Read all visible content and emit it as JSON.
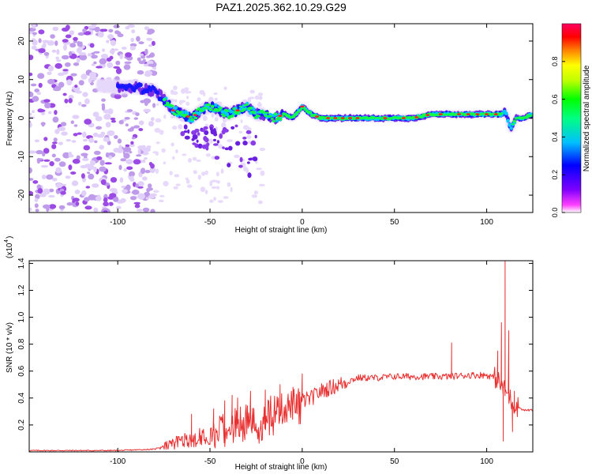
{
  "figure_title": "PAZ1.2025.362.10.29.G29",
  "chart_data": [
    {
      "type": "heatmap",
      "xlabel": "Height of straight line (km)",
      "ylabel": "Frequency (Hz)",
      "xlim": [
        -148,
        125
      ],
      "ylim": [
        -24.5,
        24.5
      ],
      "xticks": [
        -100,
        -50,
        0,
        50,
        100
      ],
      "yticks": [
        -20,
        -10,
        0,
        10,
        20
      ],
      "ridge": {
        "x": [
          -148,
          -120,
          -100,
          -90,
          -80,
          -75,
          -70,
          -65,
          -60,
          -55,
          -50,
          -45,
          -40,
          -35,
          -30,
          -25,
          -20,
          -15,
          -10,
          -5,
          0,
          5,
          10,
          20,
          30,
          40,
          50,
          60,
          70,
          80,
          90,
          100,
          105,
          108,
          110,
          113,
          116,
          120,
          125
        ],
        "freq": [
          10,
          9,
          8,
          8,
          7,
          5,
          2,
          1,
          0,
          2,
          3,
          2,
          1,
          2,
          3,
          1,
          1,
          0,
          1,
          0,
          3,
          1,
          0,
          0,
          0,
          0,
          0,
          0,
          1,
          1,
          1,
          1,
          1,
          1,
          2,
          -3,
          0,
          0,
          1
        ]
      },
      "colorbar": {
        "label": "Normalized spectral amplitude",
        "range": [
          0,
          1
        ],
        "ticks": [
          "0.0",
          "0.2",
          "0.4",
          "0.6",
          "0.8"
        ],
        "tick_values": [
          0,
          0.2,
          0.4,
          0.6,
          0.8
        ],
        "colormap": [
          "#ffffff",
          "#ff00ff",
          "#8000ff",
          "#0000ff",
          "#00c0ff",
          "#00ff80",
          "#00ff00",
          "#c0ff00",
          "#ffff00",
          "#ff8000",
          "#ff0000",
          "#ff0060"
        ]
      },
      "colors": {
        "noise": "#8a2be2",
        "ridge_core": "#ff2020"
      }
    },
    {
      "type": "line",
      "xlabel": "Height of straight line (km)",
      "ylabel": "SNR (10 * v/v)",
      "scale_label": "(x10",
      "scale_exp": "4",
      "xlim": [
        -148,
        125
      ],
      "ylim": [
        0,
        1.42
      ],
      "xticks": [
        -100,
        -50,
        0,
        50,
        100
      ],
      "yticks": [
        0.2,
        0.4,
        0.6,
        0.8,
        1.0,
        1.2,
        1.4
      ],
      "ytick_labels": [
        "0.2",
        "0.4",
        "0.6",
        "0.8",
        "1.0",
        "1.2",
        "1.4"
      ],
      "series": [
        {
          "name": "SNR",
          "color": "#e83030",
          "envelope": {
            "x": [
              -148,
              -100,
              -80,
              -75,
              -70,
              -60,
              -50,
              -40,
              -30,
              -20,
              -10,
              -5,
              0,
              5,
              10,
              20,
              30,
              40,
              50,
              60,
              70,
              80,
              90,
              100,
              105,
              110,
              115,
              120,
              125
            ],
            "y": [
              0.01,
              0.01,
              0.02,
              0.05,
              0.08,
              0.1,
              0.15,
              0.2,
              0.25,
              0.3,
              0.32,
              0.35,
              0.38,
              0.4,
              0.45,
              0.5,
              0.55,
              0.55,
              0.56,
              0.56,
              0.56,
              0.56,
              0.57,
              0.57,
              0.55,
              0.45,
              0.35,
              0.31,
              0.31
            ]
          },
          "spikes": [
            {
              "x": -60,
              "y": 0.28
            },
            {
              "x": -48,
              "y": 0.32
            },
            {
              "x": -42,
              "y": 0.38
            },
            {
              "x": -38,
              "y": 0.42
            },
            {
              "x": -35,
              "y": 0.4
            },
            {
              "x": -28,
              "y": 0.45
            },
            {
              "x": -20,
              "y": 0.46
            },
            {
              "x": -12,
              "y": 0.5
            },
            {
              "x": -5,
              "y": 0.48
            },
            {
              "x": 0,
              "y": 0.58
            },
            {
              "x": 81,
              "y": 0.81
            },
            {
              "x": 106,
              "y": 0.75
            },
            {
              "x": 108,
              "y": 0.96
            },
            {
              "x": 110,
              "y": 1.42
            },
            {
              "x": 112,
              "y": 0.9
            },
            {
              "x": 115,
              "y": 0.45
            }
          ],
          "dips": [
            {
              "x": 109,
              "y": 0.08
            },
            {
              "x": 114,
              "y": 0.15
            }
          ]
        }
      ]
    }
  ]
}
